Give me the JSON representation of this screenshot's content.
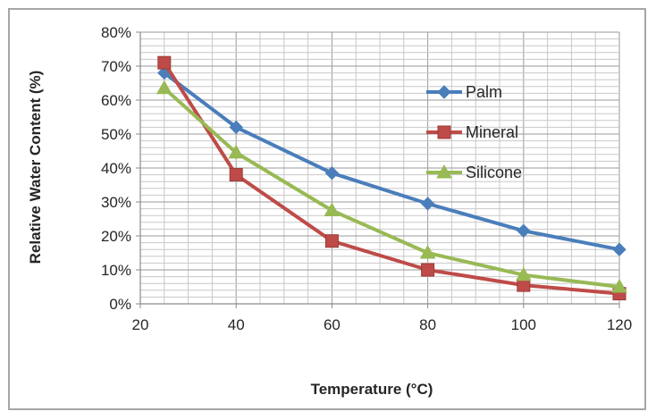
{
  "chart_data": {
    "type": "line",
    "title": "",
    "xlabel": "Temperature (°C)",
    "ylabel": "Relative Water Content (%)",
    "xlim": [
      20,
      120
    ],
    "ylim": [
      0,
      80
    ],
    "x_ticks": [
      "20",
      "40",
      "60",
      "80",
      "100",
      "120"
    ],
    "y_ticks": [
      "0%",
      "10%",
      "20%",
      "30%",
      "40%",
      "50%",
      "60%",
      "70%",
      "80%"
    ],
    "grid": true,
    "legend_position": "right",
    "series": [
      {
        "name": "Palm",
        "color": "#4a7ebb",
        "marker": "diamond",
        "x": [
          25,
          40,
          60,
          80,
          100,
          120
        ],
        "y": [
          68,
          52,
          38.5,
          29.5,
          21.5,
          16
        ]
      },
      {
        "name": "Mineral",
        "color": "#be4b48",
        "marker": "square",
        "x": [
          25,
          40,
          60,
          80,
          100,
          120
        ],
        "y": [
          71,
          38,
          18.5,
          10,
          5.5,
          3
        ]
      },
      {
        "name": "Silicone",
        "color": "#98b954",
        "marker": "triangle",
        "x": [
          25,
          40,
          60,
          80,
          100,
          120
        ],
        "y": [
          63.5,
          44.5,
          27.5,
          15,
          8.5,
          5
        ]
      }
    ]
  }
}
